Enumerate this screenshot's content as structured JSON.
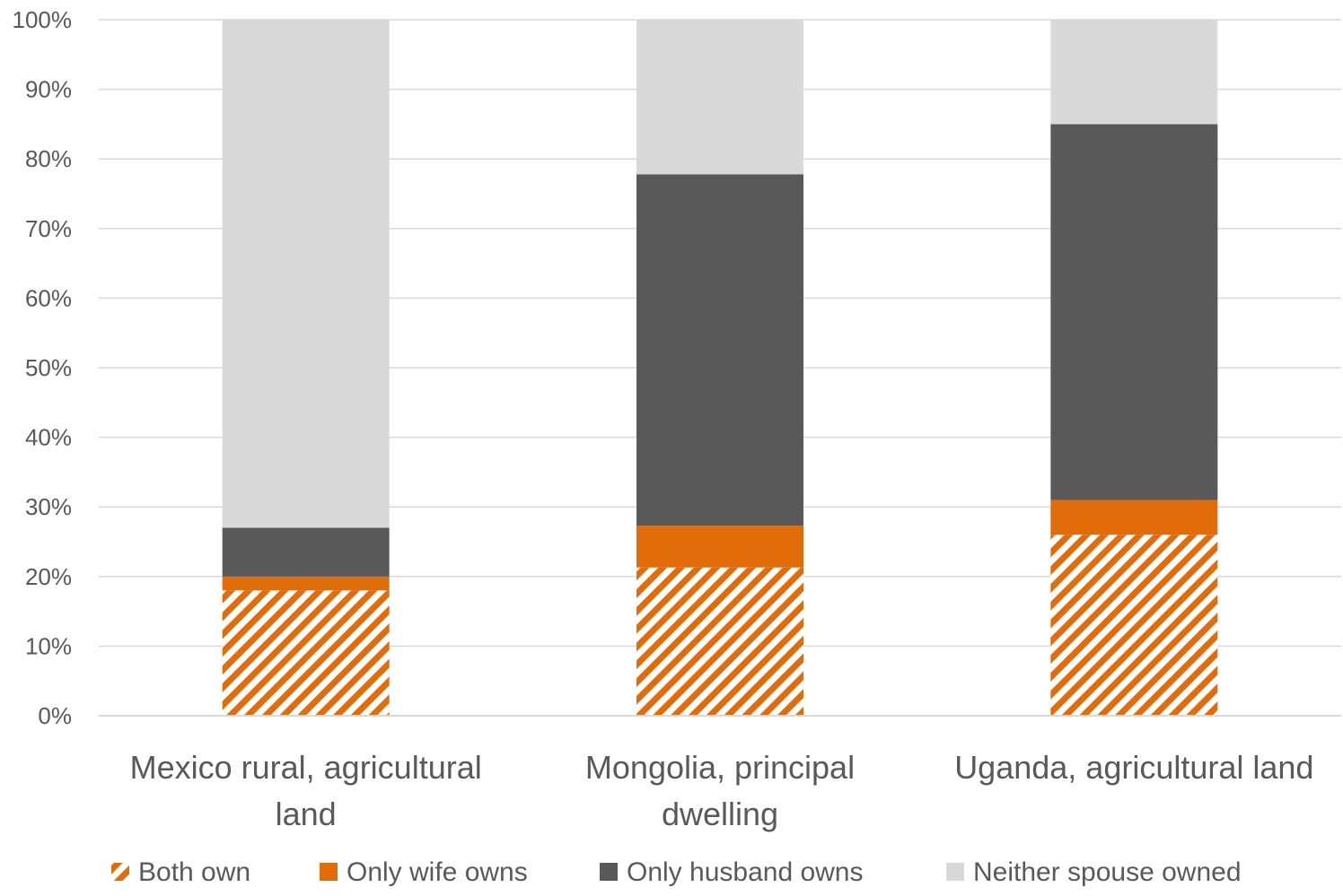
{
  "chart_data": {
    "type": "bar",
    "stacked": true,
    "title": "",
    "xlabel": "",
    "ylabel": "",
    "ylim": [
      0,
      100
    ],
    "y_ticks": [
      "0%",
      "10%",
      "20%",
      "30%",
      "40%",
      "50%",
      "60%",
      "70%",
      "80%",
      "90%",
      "100%"
    ],
    "y_tick_values": [
      0,
      10,
      20,
      30,
      40,
      50,
      60,
      70,
      80,
      90,
      100
    ],
    "grid": true,
    "legend_position": "bottom",
    "categories": [
      [
        "Mexico rural, agricultural",
        "land"
      ],
      [
        "Mongolia, principal",
        "dwelling"
      ],
      [
        "Uganda, agricultural land"
      ]
    ],
    "series": [
      {
        "name": "Both own",
        "values": [
          18,
          21.3,
          26
        ],
        "color": "#E36C0A",
        "pattern": "diagonal-hatch"
      },
      {
        "name": "Only wife owns",
        "values": [
          2,
          6,
          5
        ],
        "color": "#E36C0A",
        "pattern": "solid"
      },
      {
        "name": "Only husband owns",
        "values": [
          7,
          50.5,
          54
        ],
        "color": "#595959",
        "pattern": "solid"
      },
      {
        "name": "Neither spouse owned",
        "values": [
          73,
          22.2,
          15
        ],
        "color": "#D9D9D9",
        "pattern": "solid"
      }
    ]
  }
}
